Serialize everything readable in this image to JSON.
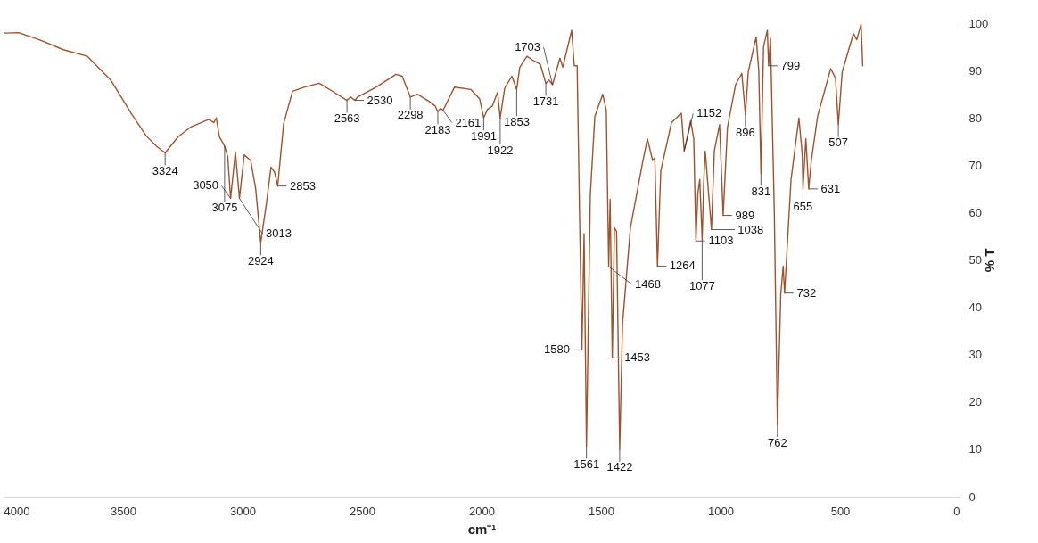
{
  "chart_data": {
    "type": "line",
    "xlabel": "cm⁻¹",
    "ylabel": "% T",
    "xlim": [
      4000,
      0
    ],
    "ylim": [
      0,
      100
    ],
    "xticks": [
      4000,
      3500,
      3000,
      2500,
      2000,
      1500,
      1000,
      500,
      0
    ],
    "yticks": [
      0,
      10,
      20,
      30,
      40,
      50,
      60,
      70,
      80,
      90,
      100
    ],
    "x": [
      4000,
      3993,
      3937,
      3850,
      3750,
      3649,
      3552,
      3463,
      3403,
      3360,
      3324,
      3270,
      3216,
      3141,
      3120,
      3110,
      3097,
      3082,
      3075,
      3062,
      3050,
      3030,
      3013,
      2993,
      2966,
      2945,
      2924,
      2900,
      2881,
      2866,
      2853,
      2828,
      2791,
      2740,
      2679,
      2620,
      2563,
      2548,
      2530,
      2519,
      2440,
      2358,
      2332,
      2298,
      2269,
      2220,
      2194,
      2183,
      2172,
      2161,
      2113,
      2045,
      2008,
      1991,
      1975,
      1955,
      1933,
      1922,
      1903,
      1873,
      1853,
      1840,
      1810,
      1780,
      1754,
      1731,
      1718,
      1703,
      1672,
      1660,
      1623,
      1612,
      1600,
      1590,
      1580,
      1571,
      1561,
      1545,
      1526,
      1493,
      1478,
      1468,
      1462,
      1453,
      1444,
      1435,
      1422,
      1410,
      1377,
      1325,
      1306,
      1284,
      1275,
      1264,
      1250,
      1205,
      1164,
      1152,
      1125,
      1112,
      1103,
      1095,
      1087,
      1077,
      1070,
      1064,
      1038,
      1026,
      1004,
      989,
      971,
      937,
      911,
      896,
      884,
      851,
      840,
      831,
      820,
      804,
      799,
      791,
      775,
      762,
      748,
      738,
      732,
      705,
      672,
      658,
      655,
      643,
      631,
      620,
      594,
      539,
      519,
      507,
      491,
      444,
      430,
      412,
      405
    ],
    "series": [
      {
        "color": "#a0522d",
        "values": [
          98,
          97.9,
          98,
          96.5,
          94.4,
          93,
          88,
          80.7,
          76.2,
          74,
          72.6,
          76,
          78.1,
          79.7,
          79,
          80,
          76,
          74.7,
          74,
          71.8,
          63,
          72.8,
          63,
          72.2,
          71,
          65,
          53.6,
          62,
          69.6,
          68.5,
          65.6,
          78.8,
          85.6,
          86.5,
          87.3,
          85.5,
          83.7,
          84.4,
          83.7,
          84.4,
          86.5,
          89.2,
          88.8,
          84.4,
          85,
          83.5,
          82.5,
          81.3,
          82,
          81.6,
          86.5,
          86,
          84,
          80,
          81.8,
          82.5,
          85.4,
          80,
          86.3,
          88.8,
          86,
          90.7,
          93,
          92,
          91.3,
          87.3,
          88,
          87,
          92.6,
          90.7,
          98.5,
          91,
          91,
          60,
          31,
          55.5,
          10.7,
          63.6,
          80.3,
          85,
          81.6,
          48.6,
          62.8,
          29.3,
          56.8,
          56,
          10,
          36.6,
          56.8,
          70.9,
          75.6,
          71,
          71.6,
          48.7,
          68.8,
          79,
          81,
          73,
          79.4,
          75.6,
          54,
          64,
          67,
          54.4,
          67,
          73,
          56.4,
          73,
          78.6,
          59.4,
          78,
          87,
          89.4,
          80.7,
          89.7,
          97.1,
          90,
          68.3,
          95,
          98.5,
          91,
          96.8,
          60,
          15.2,
          42.7,
          48.7,
          43,
          67,
          80,
          72.2,
          65,
          75.6,
          65,
          71,
          80.3,
          90.4,
          88.4,
          78.6,
          89.7,
          97.8,
          96.5,
          99.8,
          91
        ]
      }
    ],
    "annotations": [
      {
        "text": "3324",
        "x": 3324,
        "y": 72.6
      },
      {
        "text": "3075",
        "x": 3075,
        "y": 74
      },
      {
        "text": "3050",
        "x": 3050,
        "y": 63
      },
      {
        "text": "3013",
        "x": 3013,
        "y": 63
      },
      {
        "text": "2924",
        "x": 2924,
        "y": 53.6
      },
      {
        "text": "2853",
        "x": 2853,
        "y": 65.6
      },
      {
        "text": "2563",
        "x": 2563,
        "y": 83.7
      },
      {
        "text": "2530",
        "x": 2530,
        "y": 83.7
      },
      {
        "text": "2298",
        "x": 2298,
        "y": 84.4
      },
      {
        "text": "2183",
        "x": 2183,
        "y": 81.3
      },
      {
        "text": "2161",
        "x": 2161,
        "y": 81.6
      },
      {
        "text": "1991",
        "x": 1991,
        "y": 80
      },
      {
        "text": "1922",
        "x": 1922,
        "y": 80
      },
      {
        "text": "1853",
        "x": 1853,
        "y": 86
      },
      {
        "text": "1731",
        "x": 1731,
        "y": 87.3
      },
      {
        "text": "1703",
        "x": 1703,
        "y": 87
      },
      {
        "text": "1580",
        "x": 1580,
        "y": 31
      },
      {
        "text": "1561",
        "x": 1561,
        "y": 10.7
      },
      {
        "text": "1468",
        "x": 1468,
        "y": 48.6
      },
      {
        "text": "1453",
        "x": 1453,
        "y": 29.3
      },
      {
        "text": "1422",
        "x": 1422,
        "y": 10
      },
      {
        "text": "1264",
        "x": 1264,
        "y": 48.7
      },
      {
        "text": "1152",
        "x": 1152,
        "y": 73
      },
      {
        "text": "1103",
        "x": 1103,
        "y": 54
      },
      {
        "text": "1077",
        "x": 1077,
        "y": 54.4
      },
      {
        "text": "1038",
        "x": 1038,
        "y": 56.4
      },
      {
        "text": "989",
        "x": 989,
        "y": 59.4
      },
      {
        "text": "896",
        "x": 896,
        "y": 80.7
      },
      {
        "text": "831",
        "x": 831,
        "y": 68.3
      },
      {
        "text": "799",
        "x": 799,
        "y": 91
      },
      {
        "text": "762",
        "x": 762,
        "y": 15.2
      },
      {
        "text": "732",
        "x": 732,
        "y": 43
      },
      {
        "text": "655",
        "x": 655,
        "y": 65
      },
      {
        "text": "631",
        "x": 631,
        "y": 65
      },
      {
        "text": "507",
        "x": 507,
        "y": 78.6
      }
    ]
  }
}
